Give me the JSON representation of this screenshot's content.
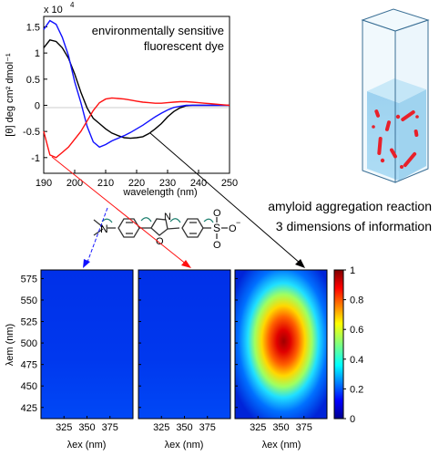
{
  "cd_chart": {
    "exponent_label": "x 10",
    "exponent_power": "4",
    "ylabel": "[θ] deg cm² dmol⁻¹",
    "xlabel": "wavelength (nm)",
    "annotation_line1": "environmentally sensitive",
    "annotation_line2": "fluorescent dye",
    "x_ticks": [
      "190",
      "200",
      "210",
      "220",
      "230",
      "240",
      "250"
    ],
    "y_ticks": [
      "1.5",
      "1",
      "0.5",
      "0",
      "-0.5",
      "-1"
    ]
  },
  "right_text": {
    "line1": "amyloid aggregation reaction",
    "line2": "3 dimensions of information"
  },
  "molecule_labels": {
    "n_label": "N",
    "n2_label": "N",
    "o_label": "O",
    "s_label": "S",
    "o3_label": "O",
    "o4_label": "O",
    "o5_label": "O"
  },
  "heatmaps": {
    "ylabel": "λem (nm)",
    "y_ticks": [
      "575",
      "550",
      "525",
      "500",
      "475",
      "450",
      "425"
    ],
    "x_ticks": [
      "325",
      "350",
      "375"
    ],
    "xlabel": "λex (nm)"
  },
  "colorbar": {
    "ticks": [
      "1",
      "0.8",
      "0.6",
      "0.4",
      "0.2",
      "0"
    ]
  },
  "chart_data": [
    {
      "type": "line",
      "xlim": [
        190,
        250
      ],
      "ylim": [
        -1.3,
        1.7
      ],
      "y_scale": "x 10^4",
      "xlabel": "wavelength (nm)",
      "ylabel": "[θ] deg cm² dmol⁻¹",
      "series": [
        {
          "color": "#000000",
          "x": [
            190,
            192,
            194,
            196,
            198,
            200,
            202,
            204,
            206,
            208,
            210,
            212,
            214,
            216,
            218,
            220,
            222,
            224,
            226,
            228,
            230,
            232,
            234,
            236,
            238,
            240,
            242,
            244,
            246,
            248,
            250
          ],
          "y": [
            1.1,
            1.25,
            1.22,
            1.1,
            0.9,
            0.6,
            0.25,
            -0.05,
            -0.25,
            -0.35,
            -0.45,
            -0.53,
            -0.58,
            -0.62,
            -0.63,
            -0.62,
            -0.6,
            -0.54,
            -0.45,
            -0.35,
            -0.22,
            -0.12,
            -0.05,
            -0.01,
            0.0,
            0.0,
            0.0,
            0.0,
            0.0,
            0.0,
            0.0
          ]
        },
        {
          "color": "#1010ff",
          "x": [
            190,
            192,
            194,
            196,
            198,
            200,
            202,
            204,
            206,
            208,
            210,
            212,
            214,
            216,
            218,
            220,
            222,
            224,
            226,
            228,
            230,
            232,
            234,
            236,
            238,
            240,
            242,
            244,
            246,
            248,
            250
          ],
          "y": [
            1.45,
            1.62,
            1.55,
            1.3,
            0.95,
            0.45,
            0.05,
            -0.4,
            -0.7,
            -0.8,
            -0.75,
            -0.68,
            -0.63,
            -0.58,
            -0.52,
            -0.45,
            -0.38,
            -0.3,
            -0.22,
            -0.15,
            -0.09,
            -0.04,
            -0.02,
            0.0,
            0.0,
            0.0,
            0.0,
            0.0,
            0.0,
            0.0,
            0.0
          ]
        },
        {
          "color": "#ff1010",
          "x": [
            190,
            192,
            194,
            196,
            198,
            200,
            202,
            204,
            206,
            208,
            210,
            212,
            214,
            216,
            218,
            220,
            222,
            224,
            226,
            228,
            230,
            232,
            234,
            236,
            238,
            240,
            242,
            244,
            246,
            248,
            250
          ],
          "y": [
            -0.5,
            -0.95,
            -1.0,
            -0.9,
            -0.8,
            -0.65,
            -0.5,
            -0.3,
            -0.1,
            0.05,
            0.12,
            0.14,
            0.13,
            0.12,
            0.1,
            0.08,
            0.06,
            0.05,
            0.04,
            0.04,
            0.05,
            0.06,
            0.07,
            0.07,
            0.06,
            0.05,
            0.04,
            0.03,
            0.02,
            0.01,
            0.0
          ]
        }
      ]
    },
    {
      "type": "heatmap",
      "panels": 3,
      "x_ticks": [
        325,
        350,
        375
      ],
      "y_ticks": [
        425,
        450,
        475,
        500,
        525,
        550,
        575
      ],
      "colorbar_range": [
        0,
        1
      ],
      "peak_panel_3": {
        "ex": 358,
        "em": 505,
        "value": 0.9
      }
    }
  ]
}
